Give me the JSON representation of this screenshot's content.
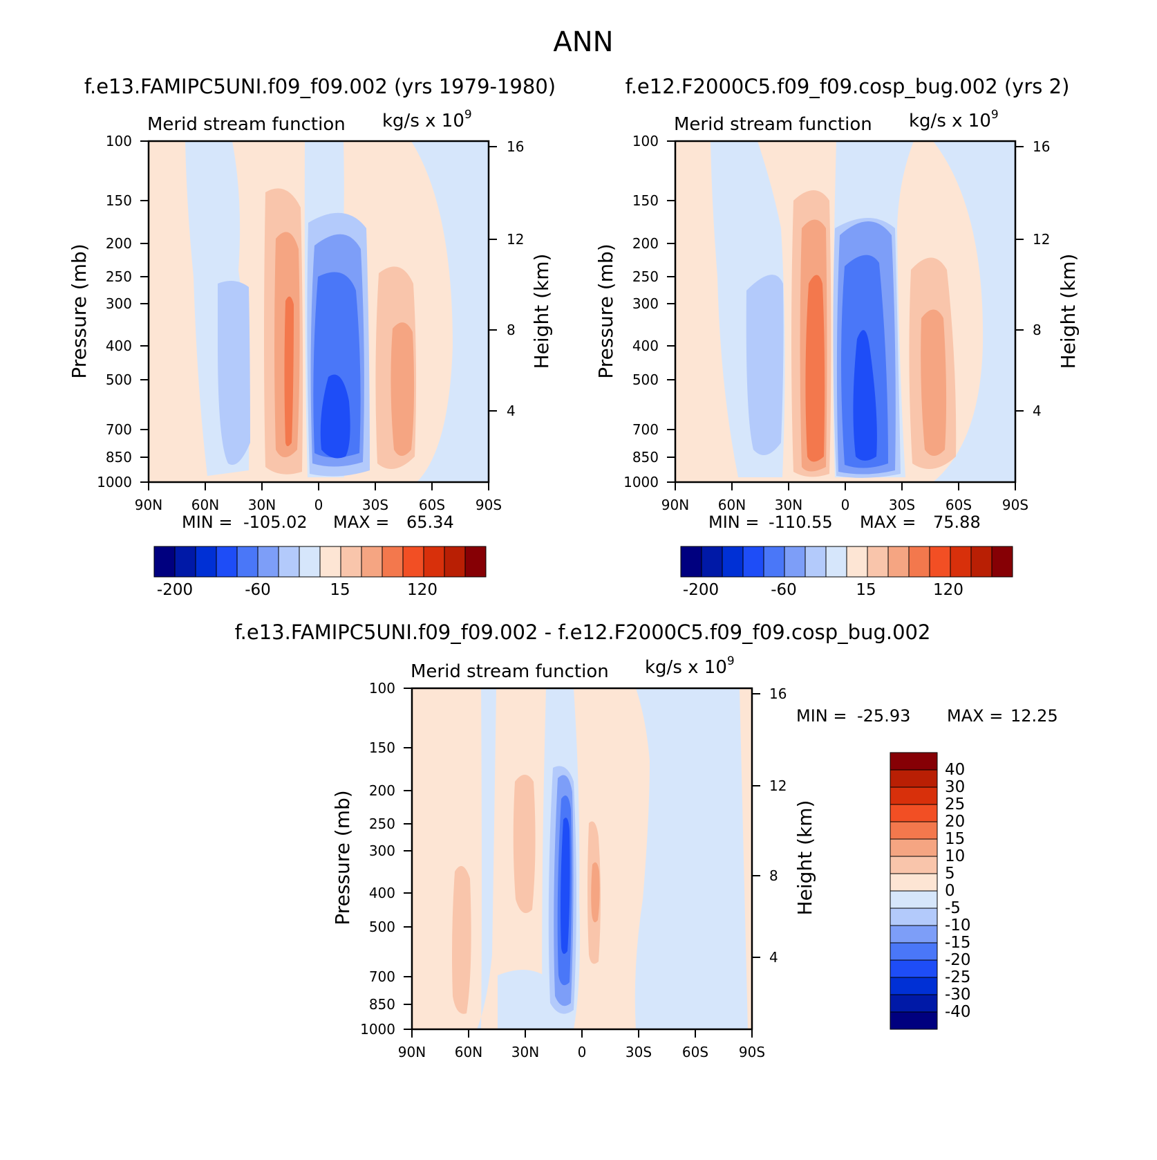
{
  "figure": {
    "title": "ANN"
  },
  "panels": [
    {
      "case_title": "f.e13.FAMIPC5UNI.f09_f09.002 (yrs 1979-1980)",
      "plot_label": "Merid stream function",
      "units_label": "kg/s x 10",
      "units_exp": "9",
      "ylabel": "Pressure (mb)",
      "ylabel_right": "Height (km)",
      "min_label": "MIN =",
      "min_value": "-105.02",
      "max_label": "MAX =",
      "max_value": "65.34",
      "cb_labels": [
        "-200",
        "-60",
        "15",
        "120"
      ]
    },
    {
      "case_title": "f.e12.F2000C5.f09_f09.cosp_bug.002 (yrs 2)",
      "plot_label": "Merid stream function",
      "units_label": "kg/s x 10",
      "units_exp": "9",
      "ylabel": "Pressure (mb)",
      "ylabel_right": "Height (km)",
      "min_label": "MIN =",
      "min_value": "-110.55",
      "max_label": "MAX =",
      "max_value": "75.88",
      "cb_labels": [
        "-200",
        "-60",
        "15",
        "120"
      ]
    },
    {
      "case_title": "f.e13.FAMIPC5UNI.f09_f09.002 - f.e12.F2000C5.f09_f09.cosp_bug.002",
      "plot_label": "Merid stream function",
      "units_label": "kg/s x 10",
      "units_exp": "9",
      "ylabel": "Pressure (mb)",
      "ylabel_right": "Height (km)",
      "min_label": "MIN =",
      "min_value": "-25.93",
      "max_label": "MAX =",
      "max_value": "12.25",
      "cb_labels": [
        "40",
        "30",
        "25",
        "20",
        "15",
        "10",
        "5",
        "0",
        "-5",
        "-10",
        "-15",
        "-20",
        "-25",
        "-30",
        "-40"
      ]
    }
  ],
  "chart_data": [
    {
      "type": "heatmap",
      "title": "f.e13.FAMIPC5UNI.f09_f09.002 (yrs 1979-1980)",
      "xlabel": "",
      "ylabel": "Pressure (mb)",
      "x_ticks": [
        "90N",
        "60N",
        "30N",
        "0",
        "30S",
        "60S",
        "90S"
      ],
      "y_ticks": [
        "100",
        "150",
        "200",
        "250",
        "300",
        "400",
        "500",
        "700",
        "850",
        "1000"
      ],
      "y2_ticks": [
        "16",
        "12",
        "8",
        "4"
      ],
      "ylim": [
        1000,
        100
      ],
      "colorbar": [
        -200,
        -60,
        15,
        120
      ],
      "min": -105.02,
      "max": 65.34,
      "cells": [
        {
          "lat": 40,
          "p": 500,
          "value": -10
        },
        {
          "lat": 15,
          "p": 500,
          "value": 45
        },
        {
          "lat": -12,
          "p": 600,
          "value": -105
        },
        {
          "lat": -45,
          "p": 500,
          "value": 25
        },
        {
          "lat": -80,
          "p": 500,
          "value": -5
        }
      ]
    },
    {
      "type": "heatmap",
      "title": "f.e12.F2000C5.f09_f09.cosp_bug.002 (yrs 2)",
      "xlabel": "",
      "ylabel": "Pressure (mb)",
      "x_ticks": [
        "90N",
        "60N",
        "30N",
        "0",
        "30S",
        "60S",
        "90S"
      ],
      "y_ticks": [
        "100",
        "150",
        "200",
        "250",
        "300",
        "400",
        "500",
        "700",
        "850",
        "1000"
      ],
      "y2_ticks": [
        "16",
        "12",
        "8",
        "4"
      ],
      "ylim": [
        1000,
        100
      ],
      "colorbar": [
        -200,
        -60,
        15,
        120
      ],
      "min": -110.55,
      "max": 75.88,
      "cells": [
        {
          "lat": 45,
          "p": 500,
          "value": -15
        },
        {
          "lat": 15,
          "p": 500,
          "value": 55
        },
        {
          "lat": -12,
          "p": 550,
          "value": -110
        },
        {
          "lat": -45,
          "p": 500,
          "value": 30
        },
        {
          "lat": -80,
          "p": 500,
          "value": -5
        }
      ]
    },
    {
      "type": "heatmap",
      "title": "f.e13.FAMIPC5UNI.f09_f09.002 - f.e12.F2000C5.f09_f09.cosp_bug.002",
      "xlabel": "",
      "ylabel": "Pressure (mb)",
      "x_ticks": [
        "90N",
        "60N",
        "30N",
        "0",
        "30S",
        "60S",
        "90S"
      ],
      "y_ticks": [
        "100",
        "150",
        "200",
        "250",
        "300",
        "400",
        "500",
        "700",
        "850",
        "1000"
      ],
      "y2_ticks": [
        "16",
        "12",
        "8",
        "4"
      ],
      "ylim": [
        1000,
        100
      ],
      "colorbar": [
        -40,
        -30,
        -25,
        -20,
        -15,
        -10,
        -5,
        0,
        5,
        10,
        15,
        20,
        25,
        30,
        40
      ],
      "min": -25.93,
      "max": 12.25,
      "cells": [
        {
          "lat": 58,
          "p": 600,
          "value": 5
        },
        {
          "lat": 25,
          "p": 300,
          "value": 5
        },
        {
          "lat": 7,
          "p": 500,
          "value": -25
        },
        {
          "lat": -8,
          "p": 400,
          "value": 10
        }
      ]
    }
  ],
  "colors": {
    "neg_main": [
      "#00007f",
      "#0019a7",
      "#0030d5",
      "#1e4df7",
      "#4a77f8",
      "#7d9ef8",
      "#b3cafb",
      "#d6e6fb"
    ],
    "pos_main": [
      "#fde5d4",
      "#f9c5ab",
      "#f5a582",
      "#f3784d",
      "#f24f24",
      "#d8300b",
      "#b91f04",
      "#860005"
    ],
    "neg_diff": [
      "#00007f",
      "#0019a7",
      "#0030d5",
      "#1e4df7",
      "#4a77f8",
      "#7d9ef8",
      "#b3cafb",
      "#d6e6fb"
    ],
    "pos_diff": [
      "#fde5d4",
      "#f9c5ab",
      "#f5a582",
      "#f3784d",
      "#f24f24",
      "#d8300b",
      "#b91f04",
      "#860005"
    ]
  }
}
